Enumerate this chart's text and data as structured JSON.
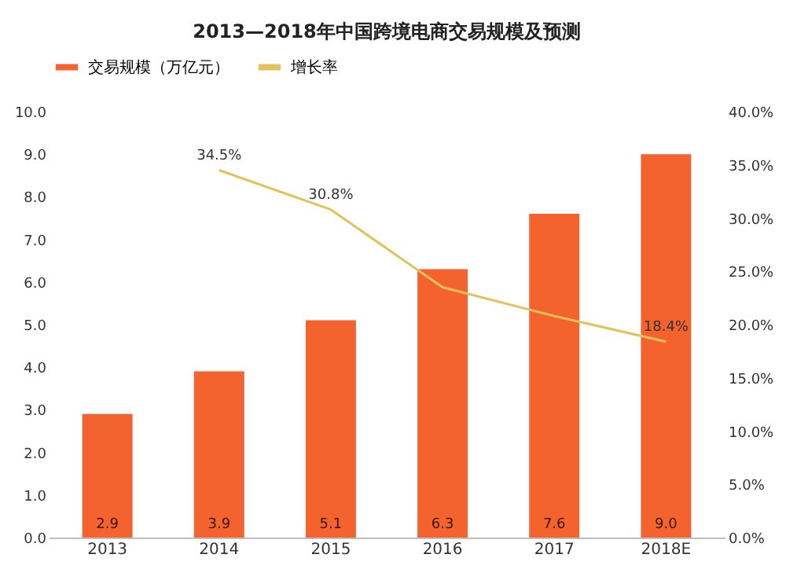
{
  "chart_data": {
    "type": "bar",
    "title": "2013—2018年中国跨境电商交易规模及预测",
    "categories": [
      "2013",
      "2014",
      "2015",
      "2016",
      "2017",
      "2018E"
    ],
    "series": [
      {
        "name": "交易规模（万亿元）",
        "color": "#f4622e",
        "values": [
          2.9,
          3.9,
          5.1,
          6.3,
          7.6,
          9.0
        ],
        "value_labels": [
          "2.9",
          "3.9",
          "5.1",
          "6.3",
          "7.6",
          "9.0"
        ]
      },
      {
        "name": "增长率",
        "type": "line",
        "axis": "y2",
        "color": "#e2c25a",
        "values": [
          null,
          34.5,
          30.8,
          23.5,
          20.8,
          18.4
        ],
        "value_labels": [
          null,
          "34.5%",
          "30.8%",
          null,
          null,
          "18.4%"
        ]
      }
    ],
    "ylim": [
      0,
      10
    ],
    "yticks": [
      {
        "value": 0,
        "label": "0.0"
      },
      {
        "value": 1,
        "label": "1.0"
      },
      {
        "value": 2,
        "label": "2.0"
      },
      {
        "value": 3,
        "label": "3.0"
      },
      {
        "value": 4,
        "label": "4.0"
      },
      {
        "value": 5,
        "label": "5.0"
      },
      {
        "value": 6,
        "label": "6.0"
      },
      {
        "value": 7,
        "label": "7.0"
      },
      {
        "value": 8,
        "label": "8.0"
      },
      {
        "value": 9,
        "label": "9.0"
      },
      {
        "value": 10,
        "label": "10.0"
      }
    ],
    "y2lim": [
      0,
      40
    ],
    "y2ticks": [
      {
        "value": 0,
        "label": "0.0%"
      },
      {
        "value": 5,
        "label": "5.0%"
      },
      {
        "value": 10,
        "label": "10.0%"
      },
      {
        "value": 15,
        "label": "15.0%"
      },
      {
        "value": 20,
        "label": "20.0%"
      },
      {
        "value": 25,
        "label": "25.0%"
      },
      {
        "value": 30,
        "label": "30.0%"
      },
      {
        "value": 35,
        "label": "35.0%"
      },
      {
        "value": 40,
        "label": "40.0%"
      }
    ],
    "grid": false,
    "legend": "top",
    "marker": "none",
    "line_style": "solid"
  }
}
